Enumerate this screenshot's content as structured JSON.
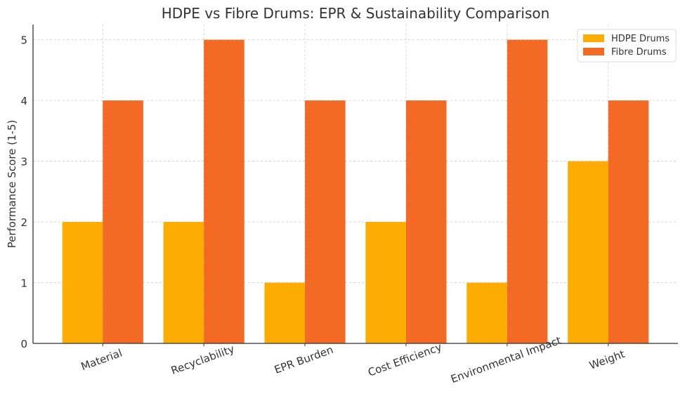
{
  "chart_data": {
    "type": "bar",
    "title": "HDPE vs Fibre Drums: EPR & Sustainability Comparison",
    "xlabel": "",
    "ylabel": "Performance Score (1-5)",
    "categories": [
      "Material",
      "Recyclability",
      "EPR Burden",
      "Cost Efficiency",
      "Environmental Impact",
      "Weight"
    ],
    "series": [
      {
        "name": "HDPE Drums",
        "values": [
          2,
          2,
          1,
          2,
          1,
          3
        ],
        "color": "#FCAC03"
      },
      {
        "name": "Fibre Drums",
        "values": [
          4,
          5,
          4,
          4,
          5,
          4
        ],
        "color": "#F26A23"
      }
    ],
    "ylim": [
      0,
      5.25
    ],
    "yticks": [
      "0",
      "1",
      "2",
      "3",
      "4",
      "5"
    ],
    "grid": true,
    "legend": "top-right",
    "xtick_rotation": 20
  }
}
